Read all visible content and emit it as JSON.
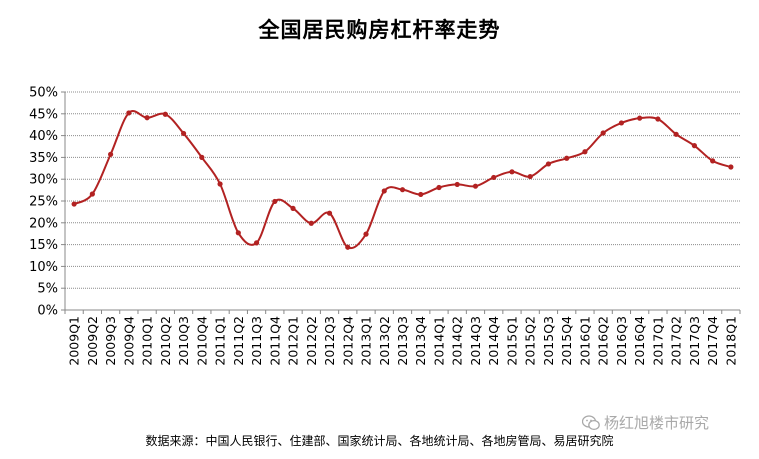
{
  "chart_data": {
    "type": "line",
    "title": "全国居民购房杠杆率走势",
    "xlabel": "",
    "ylabel": "",
    "ylim": [
      0,
      50
    ],
    "y_ticks": [
      "0%",
      "5%",
      "10%",
      "15%",
      "20%",
      "25%",
      "30%",
      "35%",
      "40%",
      "45%",
      "50%"
    ],
    "grid": true,
    "legend": "none",
    "color": "#b22222",
    "categories": [
      "2009Q1",
      "2009Q2",
      "2009Q3",
      "2009Q4",
      "2010Q1",
      "2010Q2",
      "2010Q3",
      "2010Q4",
      "2011Q1",
      "2011Q2",
      "2011Q3",
      "2011Q4",
      "2012Q1",
      "2012Q2",
      "2012Q3",
      "2012Q4",
      "2013Q1",
      "2013Q2",
      "2013Q3",
      "2013Q4",
      "2014Q1",
      "2014Q2",
      "2014Q3",
      "2014Q4",
      "2015Q1",
      "2015Q2",
      "2015Q3",
      "2015Q4",
      "2016Q1",
      "2016Q2",
      "2016Q3",
      "2016Q4",
      "2017Q1",
      "2017Q2",
      "2017Q3",
      "2017Q4",
      "2018Q1"
    ],
    "series": [
      {
        "values": [
          24.3,
          26.6,
          35.7,
          45.2,
          44.1,
          44.9,
          40.5,
          35.0,
          28.9,
          17.7,
          15.4,
          24.9,
          23.3,
          19.9,
          22.2,
          14.4,
          17.4,
          27.3,
          27.6,
          26.5,
          28.1,
          28.8,
          28.4,
          30.4,
          31.7,
          30.6,
          33.5,
          34.8,
          36.3,
          40.6,
          42.9,
          44.0,
          43.8,
          40.3,
          37.7,
          34.2,
          32.8
        ]
      }
    ]
  },
  "footer": {
    "source": "数据来源：中国人民银行、住建部、国家统计局、各地统计局、各地房管局、易居研究院",
    "watermark": "杨红旭楼市研究"
  }
}
